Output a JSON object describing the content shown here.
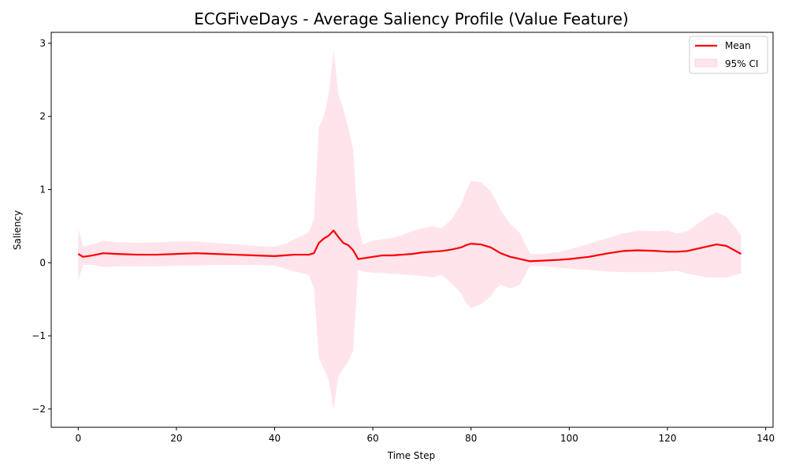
{
  "chart_data": {
    "type": "area",
    "title": "ECGFiveDays - Average Saliency Profile (Value Feature)",
    "xlabel": "Time Step",
    "ylabel": "Saliency",
    "xlim": [
      -5.5,
      141.5
    ],
    "ylim": [
      -2.25,
      3.15
    ],
    "xticks": [
      0,
      20,
      40,
      60,
      80,
      100,
      120,
      140
    ],
    "yticks": [
      -2,
      -1,
      0,
      1,
      2,
      3
    ],
    "ytick_labels": [
      "−2",
      "−1",
      "0",
      "1",
      "2",
      "3"
    ],
    "grid": false,
    "legend_position": "top-right",
    "colors": {
      "mean": "#ff0000",
      "ci": "#ffe4ec",
      "ci_border": "#ffc0cb"
    },
    "series": [
      {
        "name": "Mean",
        "kind": "line",
        "x": [
          0,
          1,
          3,
          5,
          8,
          12,
          16,
          20,
          24,
          28,
          32,
          36,
          40,
          42,
          44,
          46,
          47,
          48,
          49,
          50,
          51,
          52,
          53,
          54,
          55,
          56,
          57,
          58,
          60,
          62,
          64,
          66,
          68,
          70,
          72,
          74,
          76,
          78,
          79,
          80,
          82,
          84,
          85,
          86,
          88,
          90,
          92,
          95,
          98,
          100,
          104,
          108,
          111,
          114,
          118,
          120,
          122,
          124,
          128,
          130,
          132,
          135
        ],
        "y": [
          0.12,
          0.08,
          0.1,
          0.13,
          0.12,
          0.11,
          0.11,
          0.12,
          0.13,
          0.12,
          0.11,
          0.1,
          0.09,
          0.1,
          0.11,
          0.11,
          0.11,
          0.13,
          0.27,
          0.33,
          0.37,
          0.44,
          0.35,
          0.27,
          0.24,
          0.17,
          0.05,
          0.06,
          0.08,
          0.1,
          0.1,
          0.11,
          0.12,
          0.14,
          0.15,
          0.16,
          0.18,
          0.21,
          0.24,
          0.26,
          0.25,
          0.21,
          0.17,
          0.13,
          0.08,
          0.05,
          0.02,
          0.03,
          0.04,
          0.05,
          0.08,
          0.13,
          0.16,
          0.17,
          0.16,
          0.15,
          0.15,
          0.16,
          0.22,
          0.25,
          0.23,
          0.12
        ]
      },
      {
        "name": "95% CI",
        "kind": "band",
        "x": [
          0,
          1,
          3,
          5,
          8,
          12,
          16,
          20,
          24,
          28,
          32,
          36,
          40,
          42,
          44,
          46,
          47,
          48,
          49,
          50,
          51,
          52,
          53,
          54,
          55,
          56,
          57,
          58,
          60,
          62,
          64,
          66,
          68,
          70,
          72,
          74,
          76,
          78,
          79,
          80,
          82,
          84,
          85,
          86,
          88,
          90,
          92,
          95,
          98,
          100,
          104,
          108,
          111,
          114,
          118,
          120,
          122,
          124,
          128,
          130,
          132,
          135
        ],
        "lower": [
          -0.25,
          -0.03,
          -0.03,
          -0.06,
          -0.05,
          -0.05,
          -0.05,
          -0.04,
          -0.04,
          -0.03,
          -0.03,
          -0.03,
          -0.04,
          -0.08,
          -0.12,
          -0.15,
          -0.17,
          -0.35,
          -1.3,
          -1.45,
          -1.6,
          -2.02,
          -1.55,
          -1.45,
          -1.35,
          -1.2,
          -0.1,
          -0.12,
          -0.14,
          -0.14,
          -0.15,
          -0.16,
          -0.17,
          -0.18,
          -0.2,
          -0.17,
          -0.28,
          -0.42,
          -0.55,
          -0.62,
          -0.57,
          -0.46,
          -0.36,
          -0.3,
          -0.35,
          -0.3,
          -0.04,
          -0.05,
          -0.07,
          -0.08,
          -0.1,
          -0.12,
          -0.13,
          -0.13,
          -0.13,
          -0.12,
          -0.11,
          -0.15,
          -0.2,
          -0.2,
          -0.2,
          -0.15
        ],
        "upper": [
          0.47,
          0.22,
          0.25,
          0.3,
          0.28,
          0.27,
          0.28,
          0.29,
          0.29,
          0.27,
          0.25,
          0.23,
          0.22,
          0.25,
          0.32,
          0.38,
          0.42,
          0.6,
          1.85,
          2.0,
          2.3,
          2.9,
          2.3,
          2.1,
          1.85,
          1.55,
          0.5,
          0.25,
          0.3,
          0.32,
          0.34,
          0.38,
          0.43,
          0.47,
          0.5,
          0.47,
          0.59,
          0.8,
          0.98,
          1.12,
          1.1,
          0.98,
          0.86,
          0.72,
          0.53,
          0.4,
          0.12,
          0.12,
          0.15,
          0.18,
          0.26,
          0.34,
          0.4,
          0.44,
          0.43,
          0.44,
          0.4,
          0.43,
          0.62,
          0.69,
          0.63,
          0.38
        ]
      }
    ]
  }
}
